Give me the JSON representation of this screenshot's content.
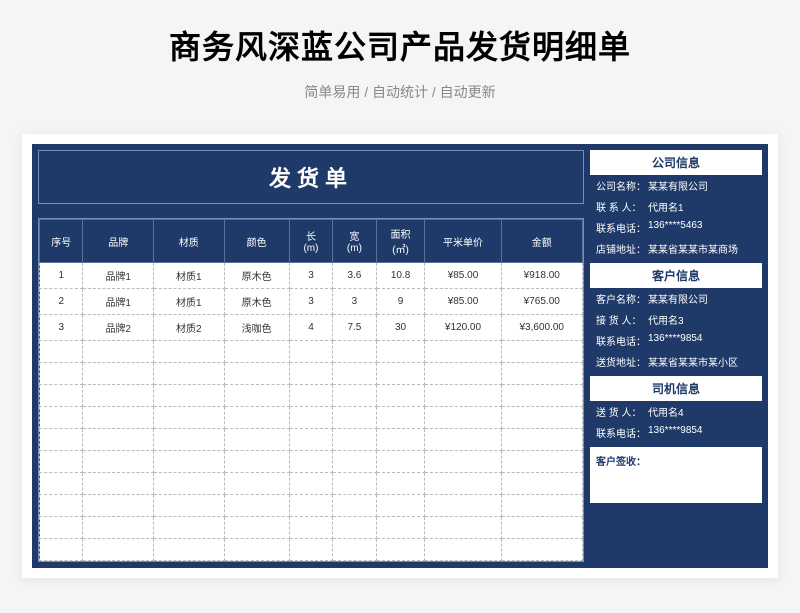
{
  "page": {
    "title": "商务风深蓝公司产品发货明细单",
    "subtitle": "简单易用  /  自动统计  /  自动更新"
  },
  "ship": {
    "title": "发货单"
  },
  "table": {
    "headers": [
      "序号",
      "品牌",
      "材质",
      "颜色",
      "长\n(m)",
      "宽\n(m)",
      "面积\n(㎡)",
      "平米单价",
      "金额"
    ],
    "col_widths": [
      "8%",
      "13%",
      "13%",
      "12%",
      "8%",
      "8%",
      "9%",
      "14%",
      "15%"
    ],
    "rows": [
      [
        "1",
        "品牌1",
        "材质1",
        "原木色",
        "3",
        "3.6",
        "10.8",
        "¥85.00",
        "¥918.00"
      ],
      [
        "2",
        "品牌1",
        "材质1",
        "原木色",
        "3",
        "3",
        "9",
        "¥85.00",
        "¥765.00"
      ],
      [
        "3",
        "品牌2",
        "材质2",
        "浅咖色",
        "4",
        "7.5",
        "30",
        "¥120.00",
        "¥3,600.00"
      ]
    ],
    "empty_rows": 10
  },
  "info": {
    "company": {
      "header": "公司信息",
      "items": [
        {
          "label": "公司名称：",
          "value": "某某有限公司"
        },
        {
          "label": "联 系 人：",
          "value": "代用名1"
        },
        {
          "label": "联系电话：",
          "value": "136****5463"
        },
        {
          "label": "店铺地址：",
          "value": "某某省某某市某商场"
        }
      ]
    },
    "customer": {
      "header": "客户信息",
      "items": [
        {
          "label": "客户名称：",
          "value": "某某有限公司"
        },
        {
          "label": "接 货 人：",
          "value": "代用名3"
        },
        {
          "label": "联系电话：",
          "value": "136****9854"
        },
        {
          "label": "送货地址：",
          "value": "某某省某某市某小区"
        }
      ]
    },
    "driver": {
      "header": "司机信息",
      "items": [
        {
          "label": "送 货 人：",
          "value": "代用名4"
        },
        {
          "label": "联系电话：",
          "value": "136****9854"
        }
      ]
    },
    "sign": "客户签收："
  },
  "colors": {
    "navy": "#1f3a68",
    "border": "#7a8db0",
    "page_bg": "#f5f5f5"
  }
}
